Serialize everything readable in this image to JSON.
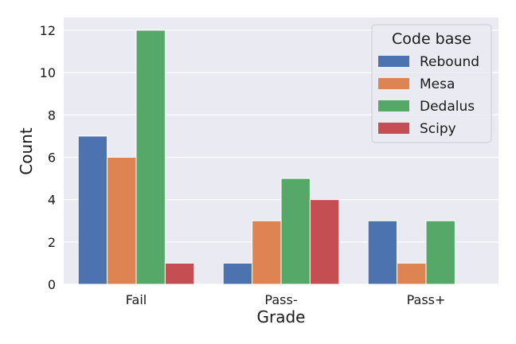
{
  "chart_data": {
    "type": "bar",
    "categories": [
      "Fail",
      "Pass-",
      "Pass+"
    ],
    "series": [
      {
        "name": "Rebound",
        "values": [
          7,
          1,
          3
        ]
      },
      {
        "name": "Mesa",
        "values": [
          6,
          3,
          1
        ]
      },
      {
        "name": "Dedalus",
        "values": [
          12,
          5,
          3
        ]
      },
      {
        "name": "Scipy",
        "values": [
          1,
          4,
          0
        ]
      }
    ],
    "xlabel": "Grade",
    "ylabel": "Count",
    "ylim": [
      0,
      12.6
    ],
    "yticks": [
      0,
      2,
      4,
      6,
      8,
      10,
      12
    ],
    "grid": true,
    "legend": {
      "title": "Code base",
      "placement": "top-right"
    },
    "colors": {
      "Rebound": "#4c72b0",
      "Mesa": "#dd8452",
      "Dedalus": "#55a868",
      "Scipy": "#c44e52",
      "plot_background": "#eaeaf2",
      "grid": "#ffffff"
    }
  }
}
